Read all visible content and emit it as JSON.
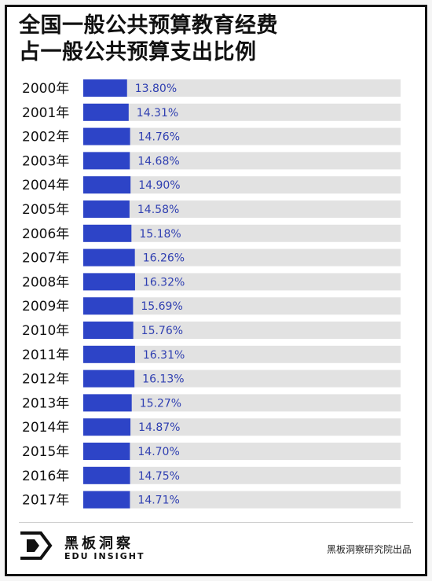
{
  "title_lines": [
    "全国一般公共预算教育经费",
    "占一般公共预算支出比例"
  ],
  "chart_data": {
    "type": "bar",
    "orientation": "horizontal",
    "title": "全国一般公共预算教育经费占一般公共预算支出比例",
    "categories": [
      "2000年",
      "2001年",
      "2002年",
      "2003年",
      "2004年",
      "2005年",
      "2006年",
      "2007年",
      "2008年",
      "2009年",
      "2010年",
      "2011年",
      "2012年",
      "2013年",
      "2014年",
      "2015年",
      "2016年",
      "2017年"
    ],
    "values": [
      13.8,
      14.31,
      14.76,
      14.68,
      14.9,
      14.58,
      15.18,
      16.26,
      16.32,
      15.69,
      15.76,
      16.31,
      16.13,
      15.27,
      14.87,
      14.7,
      14.75,
      14.71
    ],
    "value_labels": [
      "13.80%",
      "14.31%",
      "14.76%",
      "14.68%",
      "14.90%",
      "14.58%",
      "15.18%",
      "16.26%",
      "16.32%",
      "15.69%",
      "15.76%",
      "16.31%",
      "16.13%",
      "15.27%",
      "14.87%",
      "14.70%",
      "14.75%",
      "14.71%"
    ],
    "xlim": [
      0,
      100
    ],
    "xlabel": "",
    "ylabel": "",
    "grid": false,
    "legend": "none",
    "colors": {
      "bar": "#2d44c7",
      "track": "#e2e2e2",
      "label": "#2f3fb1"
    }
  },
  "footer": {
    "brand_cn": "黑板洞察",
    "brand_en": "EDU INSIGHT",
    "source": "黑板洞察研究院出品",
    "logo_icon": "edu-insight-logo-icon"
  }
}
